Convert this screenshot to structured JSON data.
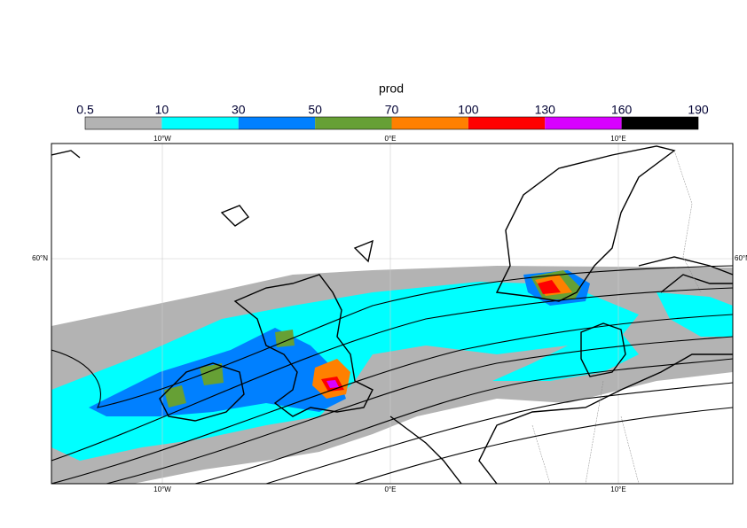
{
  "title": "prod",
  "colorbar": {
    "levels": [
      0.5,
      10,
      30,
      50,
      70,
      100,
      130,
      160,
      190
    ],
    "colors": [
      "#b3b3b3",
      "#00ffff",
      "#0080ff",
      "#66a035",
      "#ff8000",
      "#ff0000",
      "#d800ff",
      "#000000"
    ]
  },
  "map": {
    "lon_labels": [
      "10°W",
      "0°E",
      "10°E"
    ],
    "lat_labels": [
      "60°N"
    ]
  }
}
